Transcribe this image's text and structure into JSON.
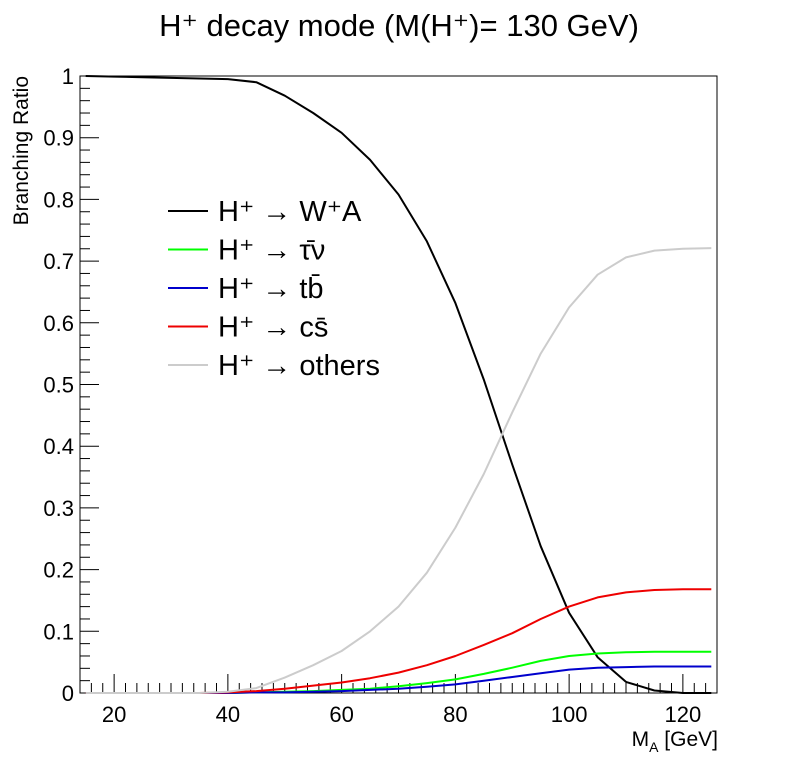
{
  "chart_data": {
    "type": "line",
    "title": "H⁺ decay mode (M(H⁺)= 130 GeV)",
    "xlabel": "M_A [GeV]",
    "ylabel": "Branching Ratio",
    "xlim": [
      14,
      126
    ],
    "ylim": [
      0,
      1
    ],
    "x_ticks": [
      20,
      40,
      60,
      80,
      100,
      120
    ],
    "y_ticks": [
      0,
      0.1,
      0.2,
      0.3,
      0.4,
      0.5,
      0.6,
      0.7,
      0.8,
      0.9,
      1
    ],
    "y_tick_labels": [
      "0",
      "0.1",
      "0.2",
      "0.3",
      "0.4",
      "0.5",
      "0.6",
      "0.7",
      "0.8",
      "0.9",
      "1"
    ],
    "grid": false,
    "legend_position": "upper-left",
    "series": [
      {
        "name": "H⁺ → W⁺A",
        "color": "#000000",
        "x": [
          15,
          20,
          25,
          30,
          35,
          40,
          45,
          50,
          55,
          60,
          65,
          70,
          75,
          80,
          85,
          90,
          95,
          100,
          105,
          110,
          115,
          120,
          125
        ],
        "y": [
          1.0,
          0.999,
          0.998,
          0.997,
          0.996,
          0.995,
          0.99,
          0.968,
          0.94,
          0.908,
          0.864,
          0.808,
          0.732,
          0.632,
          0.508,
          0.37,
          0.238,
          0.13,
          0.058,
          0.018,
          0.004,
          0.0,
          0.0
        ]
      },
      {
        "name": "H⁺ → τ̄ν",
        "color": "#00ff00",
        "x": [
          15,
          20,
          25,
          30,
          35,
          40,
          45,
          50,
          55,
          60,
          65,
          70,
          75,
          80,
          85,
          90,
          95,
          100,
          105,
          110,
          115,
          120,
          125
        ],
        "y": [
          0,
          0,
          0,
          0,
          0,
          0.0,
          0.001,
          0.002,
          0.003,
          0.005,
          0.007,
          0.011,
          0.016,
          0.022,
          0.031,
          0.041,
          0.052,
          0.06,
          0.064,
          0.066,
          0.067,
          0.067,
          0.067
        ]
      },
      {
        "name": "H⁺ → tb̄",
        "color": "#0000cc",
        "x": [
          15,
          20,
          25,
          30,
          35,
          40,
          45,
          50,
          55,
          60,
          65,
          70,
          75,
          80,
          85,
          90,
          95,
          100,
          105,
          110,
          115,
          120,
          125
        ],
        "y": [
          0,
          0,
          0,
          0,
          0,
          0.0,
          0.001,
          0.001,
          0.002,
          0.003,
          0.005,
          0.007,
          0.01,
          0.014,
          0.02,
          0.026,
          0.032,
          0.038,
          0.041,
          0.042,
          0.043,
          0.043,
          0.043
        ]
      },
      {
        "name": "H⁺ → cs̄",
        "color": "#ee0000",
        "x": [
          15,
          20,
          25,
          30,
          35,
          40,
          45,
          50,
          55,
          60,
          65,
          70,
          75,
          80,
          85,
          90,
          95,
          100,
          105,
          110,
          115,
          120,
          125
        ],
        "y": [
          0,
          0,
          0,
          0,
          0,
          0.001,
          0.003,
          0.007,
          0.012,
          0.017,
          0.024,
          0.033,
          0.045,
          0.06,
          0.078,
          0.097,
          0.12,
          0.14,
          0.155,
          0.163,
          0.167,
          0.168,
          0.168
        ]
      },
      {
        "name": "H⁺ → others",
        "color": "#cccccc",
        "x": [
          15,
          20,
          25,
          30,
          35,
          40,
          45,
          50,
          55,
          60,
          65,
          70,
          75,
          80,
          85,
          90,
          95,
          100,
          105,
          110,
          115,
          120,
          125
        ],
        "y": [
          0,
          0,
          0,
          0,
          0,
          0.002,
          0.008,
          0.025,
          0.045,
          0.068,
          0.1,
          0.14,
          0.195,
          0.268,
          0.355,
          0.455,
          0.55,
          0.625,
          0.678,
          0.706,
          0.717,
          0.72,
          0.721
        ]
      }
    ]
  }
}
